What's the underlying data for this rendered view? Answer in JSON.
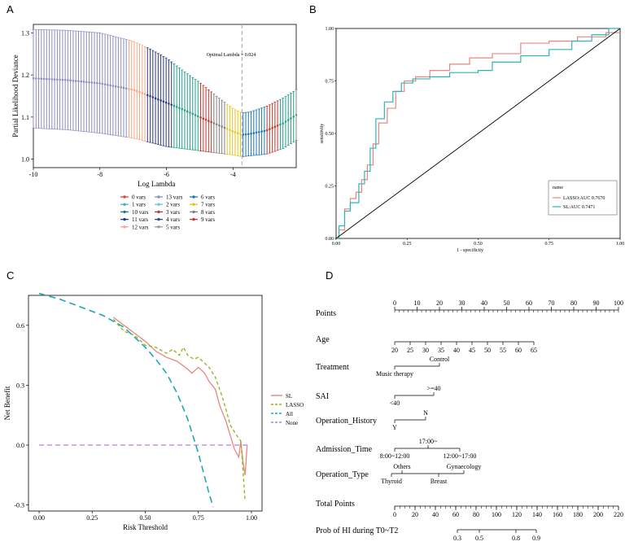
{
  "panels": {
    "a": "A",
    "b": "B",
    "c": "C",
    "d": "D"
  },
  "chart_data": [
    {
      "panel": "A",
      "type": "scatter",
      "xlabel": "Log Lambda",
      "ylabel": "Partial Likelihood Deviance",
      "xlim": [
        -10,
        -2.1
      ],
      "ylim": [
        0.98,
        1.32
      ],
      "x_ticks": [
        -10,
        -8,
        -6,
        -4
      ],
      "y_ticks": [
        1.0,
        1.1,
        1.2,
        1.3
      ],
      "annotation": "Optimal Lambda = 0.024",
      "optimal_log_lambda": -3.73,
      "curve": {
        "x": [
          -10,
          -9,
          -8,
          -7,
          -6.5,
          -6,
          -5.5,
          -5,
          -4.5,
          -4,
          -3.73,
          -3.5,
          -3,
          -2.5,
          -2.1
        ],
        "mean": [
          1.192,
          1.188,
          1.18,
          1.165,
          1.15,
          1.134,
          1.118,
          1.1,
          1.083,
          1.066,
          1.058,
          1.06,
          1.068,
          1.085,
          1.105
        ],
        "upper": [
          1.308,
          1.306,
          1.3,
          1.28,
          1.262,
          1.24,
          1.21,
          1.182,
          1.15,
          1.12,
          1.11,
          1.112,
          1.125,
          1.145,
          1.165
        ],
        "lower": [
          1.074,
          1.07,
          1.062,
          1.05,
          1.04,
          1.03,
          1.025,
          1.02,
          1.015,
          1.01,
          1.006,
          1.008,
          1.012,
          1.025,
          1.045
        ]
      },
      "color_segments": [
        {
          "from": -10,
          "to": -7.2,
          "color": "#8c8cc0"
        },
        {
          "from": -7.2,
          "to": -6.6,
          "color": "#f4a582"
        },
        {
          "from": -6.6,
          "to": -5.8,
          "color": "#2b3a80"
        },
        {
          "from": -5.8,
          "to": -5.0,
          "color": "#21a086"
        },
        {
          "from": -5.0,
          "to": -4.6,
          "color": "#c0392b"
        },
        {
          "from": -4.6,
          "to": -4.2,
          "color": "#7f7f7f"
        },
        {
          "from": -4.2,
          "to": -3.75,
          "color": "#e6c21a"
        },
        {
          "from": -3.75,
          "to": -3.0,
          "color": "#1f77b4"
        },
        {
          "from": -3.0,
          "to": -2.6,
          "color": "#c0392b"
        },
        {
          "from": -2.6,
          "to": -2.1,
          "color": "#21a086"
        }
      ],
      "legend": {
        "columns": [
          [
            {
              "label": "0 vars",
              "color": "#e0443a"
            },
            {
              "label": "1 vars",
              "color": "#46b1c9"
            },
            {
              "label": "10 vars",
              "color": "#1a7a8c"
            },
            {
              "label": "11 vars",
              "color": "#1f3d7a"
            },
            {
              "label": "12 vars",
              "color": "#f4a582"
            }
          ],
          [
            {
              "label": "13 vars",
              "color": "#8c8cc0"
            },
            {
              "label": "2 vars",
              "color": "#6ec6d9"
            },
            {
              "label": "3 vars",
              "color": "#c0392b"
            },
            {
              "label": "4 vars",
              "color": "#3a4a70"
            },
            {
              "label": "5 vars",
              "color": "#9a9a9a"
            }
          ],
          [
            {
              "label": "6 vars",
              "color": "#1f77b4"
            },
            {
              "label": "7 vars",
              "color": "#e6c21a"
            },
            {
              "label": "8 vars",
              "color": "#7f7f7f"
            },
            {
              "label": "9 vars",
              "color": "#c0392b"
            }
          ]
        ]
      }
    },
    {
      "panel": "B",
      "type": "line",
      "xlabel": "1 - specificity",
      "ylabel": "sensitivity",
      "xlim": [
        0,
        1
      ],
      "ylim": [
        0,
        1
      ],
      "x_ticks": [
        "0.00",
        "0.25",
        "0.50",
        "0.75",
        "1.00"
      ],
      "y_ticks": [
        "0.00",
        "0.25",
        "0.50",
        "0.75",
        "1.00"
      ],
      "legend_title": "name",
      "series": [
        {
          "name": "LASSO:AUC 0.7670",
          "color": "#e8877f",
          "x": [
            0,
            0.01,
            0.01,
            0.03,
            0.03,
            0.05,
            0.05,
            0.07,
            0.07,
            0.09,
            0.09,
            0.11,
            0.11,
            0.13,
            0.13,
            0.15,
            0.15,
            0.18,
            0.18,
            0.21,
            0.21,
            0.24,
            0.24,
            0.28,
            0.28,
            0.33,
            0.33,
            0.4,
            0.4,
            0.47,
            0.47,
            0.55,
            0.55,
            0.65,
            0.65,
            0.75,
            0.75,
            0.85,
            0.85,
            0.95,
            0.95,
            1.0
          ],
          "y": [
            0,
            0,
            0.04,
            0.04,
            0.14,
            0.14,
            0.19,
            0.19,
            0.22,
            0.22,
            0.28,
            0.28,
            0.35,
            0.35,
            0.45,
            0.45,
            0.55,
            0.55,
            0.62,
            0.62,
            0.7,
            0.7,
            0.75,
            0.75,
            0.77,
            0.77,
            0.8,
            0.8,
            0.83,
            0.83,
            0.86,
            0.86,
            0.88,
            0.88,
            0.93,
            0.93,
            0.94,
            0.94,
            0.96,
            0.96,
            0.98,
            0.98
          ]
        },
        {
          "name": "SL:AUC 0.7471",
          "color": "#2bb5b8",
          "x": [
            0,
            0.01,
            0.01,
            0.03,
            0.03,
            0.05,
            0.05,
            0.08,
            0.08,
            0.1,
            0.1,
            0.12,
            0.12,
            0.14,
            0.14,
            0.17,
            0.17,
            0.2,
            0.2,
            0.23,
            0.23,
            0.27,
            0.27,
            0.33,
            0.33,
            0.4,
            0.4,
            0.5,
            0.5,
            0.55,
            0.55,
            0.65,
            0.65,
            0.75,
            0.75,
            0.83,
            0.83,
            0.9,
            0.9,
            0.96,
            0.96,
            1.0
          ],
          "y": [
            0,
            0,
            0.06,
            0.06,
            0.13,
            0.13,
            0.17,
            0.17,
            0.26,
            0.26,
            0.32,
            0.32,
            0.43,
            0.43,
            0.57,
            0.57,
            0.65,
            0.65,
            0.7,
            0.7,
            0.74,
            0.74,
            0.76,
            0.76,
            0.77,
            0.77,
            0.79,
            0.79,
            0.8,
            0.8,
            0.84,
            0.84,
            0.87,
            0.87,
            0.9,
            0.9,
            0.94,
            0.94,
            0.97,
            0.97,
            1.0,
            1.0
          ]
        },
        {
          "name": "",
          "color": "#000000",
          "x": [
            0,
            1
          ],
          "y": [
            0,
            1
          ]
        }
      ]
    },
    {
      "panel": "C",
      "type": "line",
      "xlabel": "Risk Threshold",
      "ylabel": "Net Benefit",
      "xlim": [
        -0.05,
        1.05
      ],
      "ylim": [
        -0.33,
        0.75
      ],
      "x_ticks": [
        "0.00",
        "0.25",
        "0.50",
        "0.75",
        "1.00"
      ],
      "y_ticks": [
        "-0.3",
        "0.0",
        "0.3",
        "0.6"
      ],
      "series": [
        {
          "name": "SL",
          "color": "#e8877f",
          "dash": "",
          "x": [
            0.35,
            0.4,
            0.45,
            0.5,
            0.55,
            0.6,
            0.65,
            0.7,
            0.72,
            0.75,
            0.78,
            0.8,
            0.83,
            0.85,
            0.88,
            0.9,
            0.92,
            0.94,
            0.95,
            0.96,
            0.97,
            0.98
          ],
          "y": [
            0.64,
            0.6,
            0.56,
            0.52,
            0.47,
            0.44,
            0.42,
            0.38,
            0.36,
            0.39,
            0.36,
            0.32,
            0.28,
            0.2,
            0.12,
            0.05,
            -0.02,
            -0.06,
            0.02,
            -0.08,
            -0.15,
            0.0
          ]
        },
        {
          "name": "LASSO",
          "color": "#8fb21c",
          "dash": "4,3",
          "x": [
            0.35,
            0.4,
            0.45,
            0.5,
            0.55,
            0.6,
            0.63,
            0.66,
            0.68,
            0.7,
            0.73,
            0.75,
            0.78,
            0.8,
            0.83,
            0.86,
            0.88,
            0.9,
            0.93,
            0.95,
            0.96,
            0.97
          ],
          "y": [
            0.63,
            0.57,
            0.55,
            0.5,
            0.49,
            0.46,
            0.48,
            0.45,
            0.49,
            0.45,
            0.43,
            0.44,
            0.41,
            0.39,
            0.34,
            0.25,
            0.18,
            0.1,
            0.05,
            0.02,
            -0.12,
            -0.28
          ]
        },
        {
          "name": "All",
          "color": "#1fa7b3",
          "dash": "8,5",
          "x": [
            0.0,
            0.1,
            0.2,
            0.3,
            0.4,
            0.5,
            0.55,
            0.6,
            0.65,
            0.7,
            0.75,
            0.78,
            0.8,
            0.82
          ],
          "y": [
            0.76,
            0.73,
            0.69,
            0.65,
            0.59,
            0.49,
            0.43,
            0.36,
            0.26,
            0.13,
            -0.04,
            -0.16,
            -0.24,
            -0.31
          ]
        },
        {
          "name": "None",
          "color": "#b17de0",
          "dash": "6,4",
          "x": [
            0.0,
            0.99
          ],
          "y": [
            0.0,
            0.0
          ]
        }
      ]
    },
    {
      "panel": "D",
      "type": "table",
      "rows": [
        {
          "label": "Points",
          "ticks": [
            "0",
            "10",
            "20",
            "30",
            "40",
            "50",
            "60",
            "70",
            "80",
            "90",
            "100"
          ]
        },
        {
          "label": "Age",
          "ticks": [
            "20",
            "25",
            "30",
            "35",
            "40",
            "45",
            "50",
            "55",
            "60",
            "65"
          ]
        },
        {
          "label": "Treatment",
          "above": [
            "Control"
          ],
          "below": [
            "Music therapy"
          ]
        },
        {
          "label": "SAI",
          "above": [
            ">=40"
          ],
          "below": [
            "<40"
          ]
        },
        {
          "label": "Operation_History",
          "above": [
            "N"
          ],
          "below": [
            "Y"
          ]
        },
        {
          "label": "Admission_Time",
          "above": [
            "17:00~"
          ],
          "below": [
            "8:00~12:00",
            "12:00~17:00"
          ]
        },
        {
          "label": "Operation_Type",
          "above": [
            "Others",
            "Gynaecology"
          ],
          "below": [
            "Thyroid",
            "Breast"
          ]
        },
        {
          "label": "Total Points",
          "ticks": [
            "0",
            "20",
            "40",
            "60",
            "80",
            "100",
            "120",
            "140",
            "160",
            "180",
            "200",
            "220"
          ]
        },
        {
          "label": "Prob of HI during T0~T2",
          "ticks": [
            "0.3",
            "0.5",
            "0.8",
            "0.9"
          ]
        }
      ]
    }
  ]
}
